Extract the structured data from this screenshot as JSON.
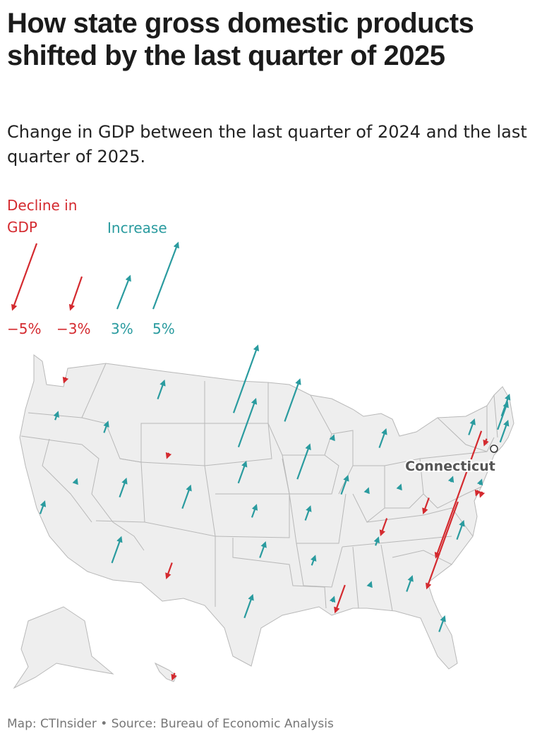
{
  "title": "How state gross domestic products shifted by the last quarter of 2025",
  "subtitle": "Change in GDP between the last quarter of 2024 and the last quarter of 2025.",
  "legend": {
    "decline_label": "Decline in GDP",
    "increase_label": "Increase",
    "keys": [
      "−5%",
      "−3%",
      "3%",
      "5%"
    ]
  },
  "highlight_label": "Connecticut",
  "footer": "Map: CTInsider • Source: Bureau of Economic Analysis",
  "colors": {
    "decline": "#d42a2f",
    "increase": "#2a9b9f",
    "land": "#eeeeee",
    "border": "#b8b8b8"
  },
  "chart_data": {
    "type": "map",
    "encoding": "arrow length and direction proportional to percent change in GDP",
    "series": [
      {
        "state": "Washington",
        "value": -0.3
      },
      {
        "state": "Oregon",
        "value": 0.5
      },
      {
        "state": "California",
        "value": 0.8
      },
      {
        "state": "Nevada",
        "value": 0.2
      },
      {
        "state": "Idaho",
        "value": 0.7
      },
      {
        "state": "Montana",
        "value": 1.2
      },
      {
        "state": "Wyoming",
        "value": -0.3
      },
      {
        "state": "Utah",
        "value": 1.2
      },
      {
        "state": "Arizona",
        "value": 1.7
      },
      {
        "state": "Colorado",
        "value": 1.5
      },
      {
        "state": "New Mexico",
        "value": -1.0
      },
      {
        "state": "North Dakota",
        "value": 4.5
      },
      {
        "state": "South Dakota",
        "value": 3.2
      },
      {
        "state": "Nebraska",
        "value": 1.4
      },
      {
        "state": "Kansas",
        "value": 0.8
      },
      {
        "state": "Oklahoma",
        "value": 1.0
      },
      {
        "state": "Texas",
        "value": 1.5
      },
      {
        "state": "Minnesota",
        "value": 2.8
      },
      {
        "state": "Iowa",
        "value": 2.3
      },
      {
        "state": "Missouri",
        "value": 0.9
      },
      {
        "state": "Arkansas",
        "value": 0.6
      },
      {
        "state": "Louisiana",
        "value": -1.8
      },
      {
        "state": "Wisconsin",
        "value": 0.2
      },
      {
        "state": "Illinois",
        "value": 1.2
      },
      {
        "state": "Michigan",
        "value": 1.2
      },
      {
        "state": "Indiana",
        "value": 0.2
      },
      {
        "state": "Ohio",
        "value": 0.2
      },
      {
        "state": "Kentucky",
        "value": -1.1
      },
      {
        "state": "Tennessee",
        "value": 0.5
      },
      {
        "state": "Mississippi",
        "value": 0.3
      },
      {
        "state": "Alabama",
        "value": 0.2
      },
      {
        "state": "Georgia",
        "value": 1.0
      },
      {
        "state": "Florida",
        "value": 1.0
      },
      {
        "state": "South Carolina",
        "value": -5.8
      },
      {
        "state": "North Carolina",
        "value": 1.2
      },
      {
        "state": "Virginia",
        "value": -8.5
      },
      {
        "state": "West Virginia",
        "value": -1.0
      },
      {
        "state": "Pennsylvania",
        "value": 0.3
      },
      {
        "state": "New York",
        "value": 1.0
      },
      {
        "state": "Vermont",
        "value": -0.4
      },
      {
        "state": "New Hampshire",
        "value": 1.8
      },
      {
        "state": "Maine",
        "value": 1.4
      },
      {
        "state": "Massachusetts",
        "value": 1.4
      },
      {
        "state": "Connecticut",
        "value": 0.0
      },
      {
        "state": "New Jersey",
        "value": 0.3
      },
      {
        "state": "Delaware",
        "value": -0.3
      },
      {
        "state": "Maryland",
        "value": -0.3
      },
      {
        "state": "Alaska",
        "value": 0.0
      },
      {
        "state": "Hawaii",
        "value": -0.4
      }
    ]
  }
}
